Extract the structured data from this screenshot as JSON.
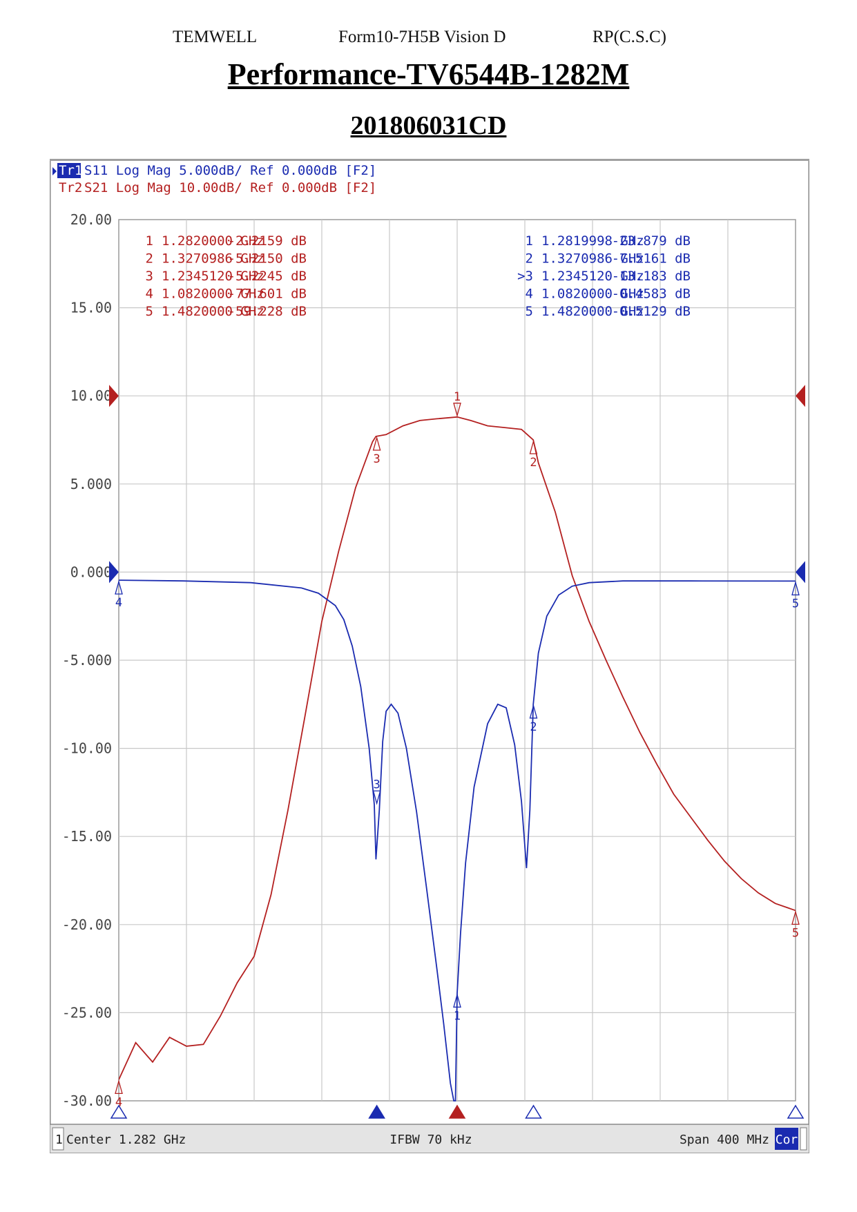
{
  "header": {
    "company": "TEMWELL",
    "form": "Form10-7H5B Vision D",
    "rp": "RP(C.S.C)"
  },
  "title": "Performance-TV6544B-1282M",
  "subtitle": "201806031CD",
  "chart_data": {
    "type": "line",
    "instrument_header": {
      "tr1": {
        "label": "Tr1",
        "text": "S11 Log Mag 5.000dB/ Ref 0.000dB [F2]"
      },
      "tr2": {
        "label": "Tr2",
        "text": "S21 Log Mag 10.00dB/ Ref 0.000dB [F2]"
      }
    },
    "ylim": [
      -30,
      20
    ],
    "xlim": [
      1.082,
      1.482
    ],
    "x_unit": "GHz",
    "y_tick_labels": [
      "20.00",
      "15.00",
      "10.00",
      "5.000",
      "0.000",
      "-5.000",
      "-10.00",
      "-15.00",
      "-20.00",
      "-25.00",
      "-30.00"
    ],
    "y_tick_values": [
      20,
      15,
      10,
      5,
      0,
      -5,
      -10,
      -15,
      -20,
      -25,
      -30
    ],
    "grid": true,
    "colors": {
      "s21": "#b42020",
      "s11": "#1a2bb0",
      "background": "#ffffff",
      "grid": "#c8c8c8"
    },
    "series": [
      {
        "name": "S21",
        "trace": "Tr2",
        "color": "#b42020",
        "x": [
          1.082,
          1.092,
          1.102,
          1.112,
          1.122,
          1.132,
          1.142,
          1.152,
          1.162,
          1.172,
          1.182,
          1.192,
          1.202,
          1.212,
          1.222,
          1.232,
          1.234,
          1.24,
          1.25,
          1.26,
          1.27,
          1.282,
          1.29,
          1.3,
          1.31,
          1.32,
          1.327,
          1.33,
          1.34,
          1.35,
          1.36,
          1.37,
          1.38,
          1.39,
          1.4,
          1.41,
          1.42,
          1.43,
          1.44,
          1.45,
          1.46,
          1.47,
          1.482
        ],
        "y": [
          -28.8,
          -26.7,
          -27.8,
          -26.4,
          -26.9,
          -26.8,
          -25.2,
          -23.3,
          -21.8,
          -18.3,
          -13.5,
          -8.2,
          -2.8,
          1.2,
          4.8,
          7.4,
          7.7,
          7.8,
          8.3,
          8.6,
          8.7,
          8.8,
          8.6,
          8.3,
          8.2,
          8.1,
          7.5,
          6.2,
          3.4,
          -0.2,
          -2.8,
          -5.0,
          -7.1,
          -9.1,
          -10.9,
          -12.6,
          -13.9,
          -15.2,
          -16.4,
          -17.4,
          -18.2,
          -18.8,
          -19.2
        ]
      },
      {
        "name": "S11",
        "trace": "Tr1",
        "color": "#1a2bb0",
        "x": [
          1.082,
          1.12,
          1.16,
          1.19,
          1.2,
          1.21,
          1.215,
          1.22,
          1.225,
          1.23,
          1.233,
          1.234,
          1.236,
          1.238,
          1.24,
          1.243,
          1.247,
          1.252,
          1.258,
          1.264,
          1.27,
          1.274,
          1.278,
          1.28,
          1.281,
          1.282,
          1.284,
          1.287,
          1.292,
          1.3,
          1.306,
          1.311,
          1.316,
          1.32,
          1.323,
          1.325,
          1.327,
          1.33,
          1.335,
          1.342,
          1.35,
          1.36,
          1.38,
          1.42,
          1.482
        ],
        "y": [
          -0.46,
          -0.5,
          -0.6,
          -0.9,
          -1.2,
          -1.9,
          -2.7,
          -4.2,
          -6.5,
          -10.0,
          -13.2,
          -16.3,
          -13.5,
          -9.6,
          -7.9,
          -7.5,
          -8.0,
          -10.0,
          -13.6,
          -18.0,
          -22.5,
          -25.6,
          -29.0,
          -30.0,
          -30.0,
          -23.9,
          -20.5,
          -16.5,
          -12.2,
          -8.6,
          -7.5,
          -7.7,
          -9.8,
          -13.0,
          -16.8,
          -13.5,
          -7.5,
          -4.6,
          -2.5,
          -1.3,
          -0.8,
          -0.6,
          -0.5,
          -0.5,
          -0.51
        ]
      }
    ],
    "markers": {
      "s21": [
        {
          "num": "1",
          "freq": "1.2820000 GHz",
          "value": "-2.2159 dB",
          "x": 1.282,
          "y": 8.8,
          "label_pos": "above"
        },
        {
          "num": "2",
          "freq": "1.3270986 GHz",
          "value": "-5.2150 dB",
          "x": 1.3271,
          "y": 7.5,
          "label_pos": "below"
        },
        {
          "num": "3",
          "freq": "1.2345120 GHz",
          "value": "-5.2245 dB",
          "x": 1.2345,
          "y": 7.7,
          "label_pos": "below"
        },
        {
          "num": "4",
          "freq": "1.0820000 GHz",
          "value": "-77.601 dB",
          "x": 1.082,
          "y": -28.8,
          "label_pos": "below"
        },
        {
          "num": "5",
          "freq": "1.4820000 GHz",
          "value": "-59.228 dB",
          "x": 1.482,
          "y": -19.2,
          "label_pos": "below"
        }
      ],
      "s11": [
        {
          "num": "1",
          "freq": "1.2819998 GHz",
          "value": "-23.879 dB",
          "x": 1.282,
          "y": -23.9,
          "label_pos": "below"
        },
        {
          "num": "2",
          "freq": "1.3270986 GHz",
          "value": "-7.5161 dB",
          "x": 1.3271,
          "y": -7.5,
          "label_pos": "below"
        },
        {
          "num": ">3",
          "freq": "1.2345120 GHz",
          "value": "-13.183 dB",
          "x": 1.2345,
          "y": -13.2,
          "label_pos": "above"
        },
        {
          "num": "4",
          "freq": "1.0820000 GHz",
          "value": "-0.4583 dB",
          "x": 1.082,
          "y": -0.46,
          "label_pos": "below"
        },
        {
          "num": "5",
          "freq": "1.4820000 GHz",
          "value": "-0.5129 dB",
          "x": 1.482,
          "y": -0.51,
          "label_pos": "below"
        }
      ]
    },
    "footer": {
      "channel": "1",
      "center": "Center 1.282 GHz",
      "ifbw": "IFBW 70 kHz",
      "span": "Span 400 MHz",
      "cor": "Cor"
    }
  }
}
